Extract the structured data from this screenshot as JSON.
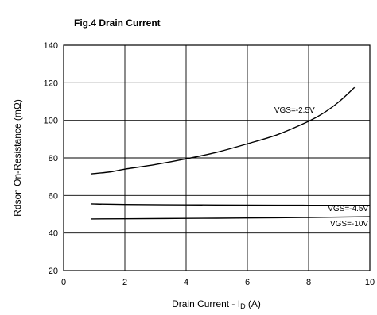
{
  "figure": {
    "title": "Fig.4  Drain Current"
  },
  "chart_data": {
    "type": "line",
    "title": "Fig.4  Drain Current",
    "xlabel": "Drain Current - ID (A)",
    "ylabel": "Rdson On-Resistance (mΩ)",
    "xlim": [
      0,
      10
    ],
    "ylim": [
      20,
      140
    ],
    "xticks": [
      "0",
      "2",
      "4",
      "6",
      "8",
      "10"
    ],
    "yticks": [
      "20",
      "40",
      "60",
      "80",
      "100",
      "120",
      "140"
    ],
    "grid": true,
    "series": [
      {
        "name": "VGS=-2.5V",
        "color": "#000000",
        "x": [
          0.9,
          1.5,
          2,
          3,
          4,
          5,
          6,
          7,
          8,
          8.5,
          9,
          9.5
        ],
        "y": [
          71.5,
          72.5,
          74,
          76.5,
          79.5,
          83,
          87.5,
          92.5,
          99.5,
          104,
          110,
          117.5
        ]
      },
      {
        "name": "VGS=-4.5V",
        "color": "#000000",
        "x": [
          0.9,
          2,
          4,
          6,
          8,
          10
        ],
        "y": [
          55.5,
          55.2,
          55.0,
          54.9,
          54.8,
          54.8
        ]
      },
      {
        "name": "VGS=-10V",
        "color": "#000000",
        "x": [
          0.9,
          2,
          4,
          6,
          8,
          10
        ],
        "y": [
          47.5,
          47.6,
          47.8,
          48.0,
          48.3,
          48.7
        ]
      }
    ]
  }
}
